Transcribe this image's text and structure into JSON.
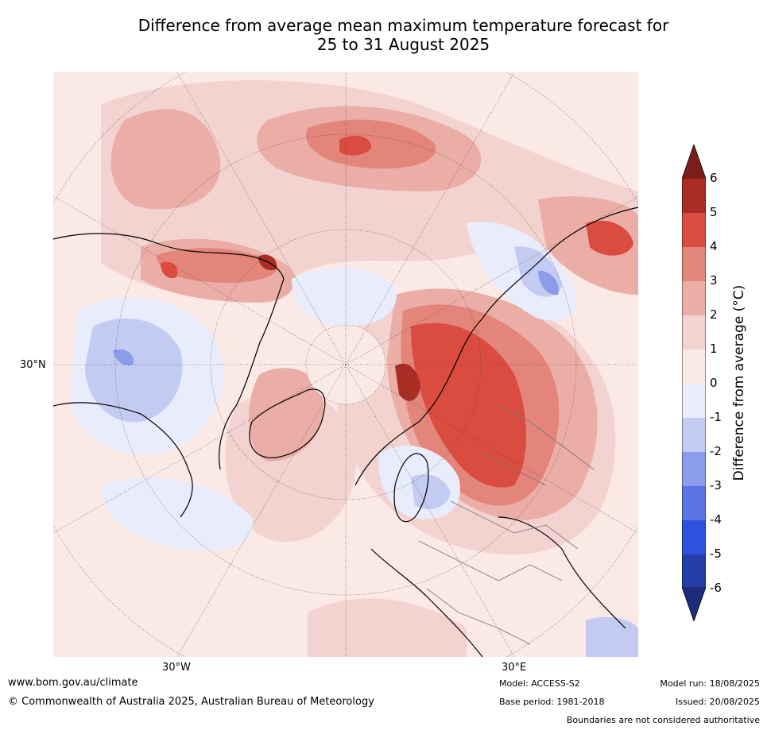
{
  "title_line1": "Difference from average mean maximum temperature forecast for",
  "title_line2": "25 to 31 August 2025",
  "map": {
    "projection": "north-polar-stereographic",
    "lat_labels": [
      "30°N"
    ],
    "lon_labels": [
      "30°W",
      "30°E"
    ]
  },
  "colorbar": {
    "label": "Difference from average (°C)",
    "ticks": [
      "6",
      "5",
      "4",
      "3",
      "2",
      "1",
      "0",
      "-1",
      "-2",
      "-3",
      "-4",
      "-5",
      "-6"
    ],
    "colors": {
      "above_6": "#7b1e1a",
      "5_6": "#a92c25",
      "4_5": "#d94c3f",
      "3_4": "#e4857b",
      "2_3": "#ebaea6",
      "1_2": "#f3d3cf",
      "0_1": "#fbe9e6",
      "m1_0": "#e8ecfb",
      "m2_m1": "#c3cbf3",
      "m3_m2": "#8b9ceb",
      "m4_m3": "#5c74e3",
      "m5_m4": "#2f51db",
      "m6_m5": "#233ea6",
      "below_m6": "#1c2b7a"
    }
  },
  "footer": {
    "website": "www.bom.gov.au/climate",
    "copyright": "© Commonwealth of Australia 2025, Australian Bureau of Meteorology",
    "model": "Model: ACCESS-S2",
    "base_period": "Base period: 1981-2018",
    "model_run": "Model run: 18/08/2025",
    "issued": "Issued: 20/08/2025",
    "disclaimer": "Boundaries are not considered authoritative"
  }
}
